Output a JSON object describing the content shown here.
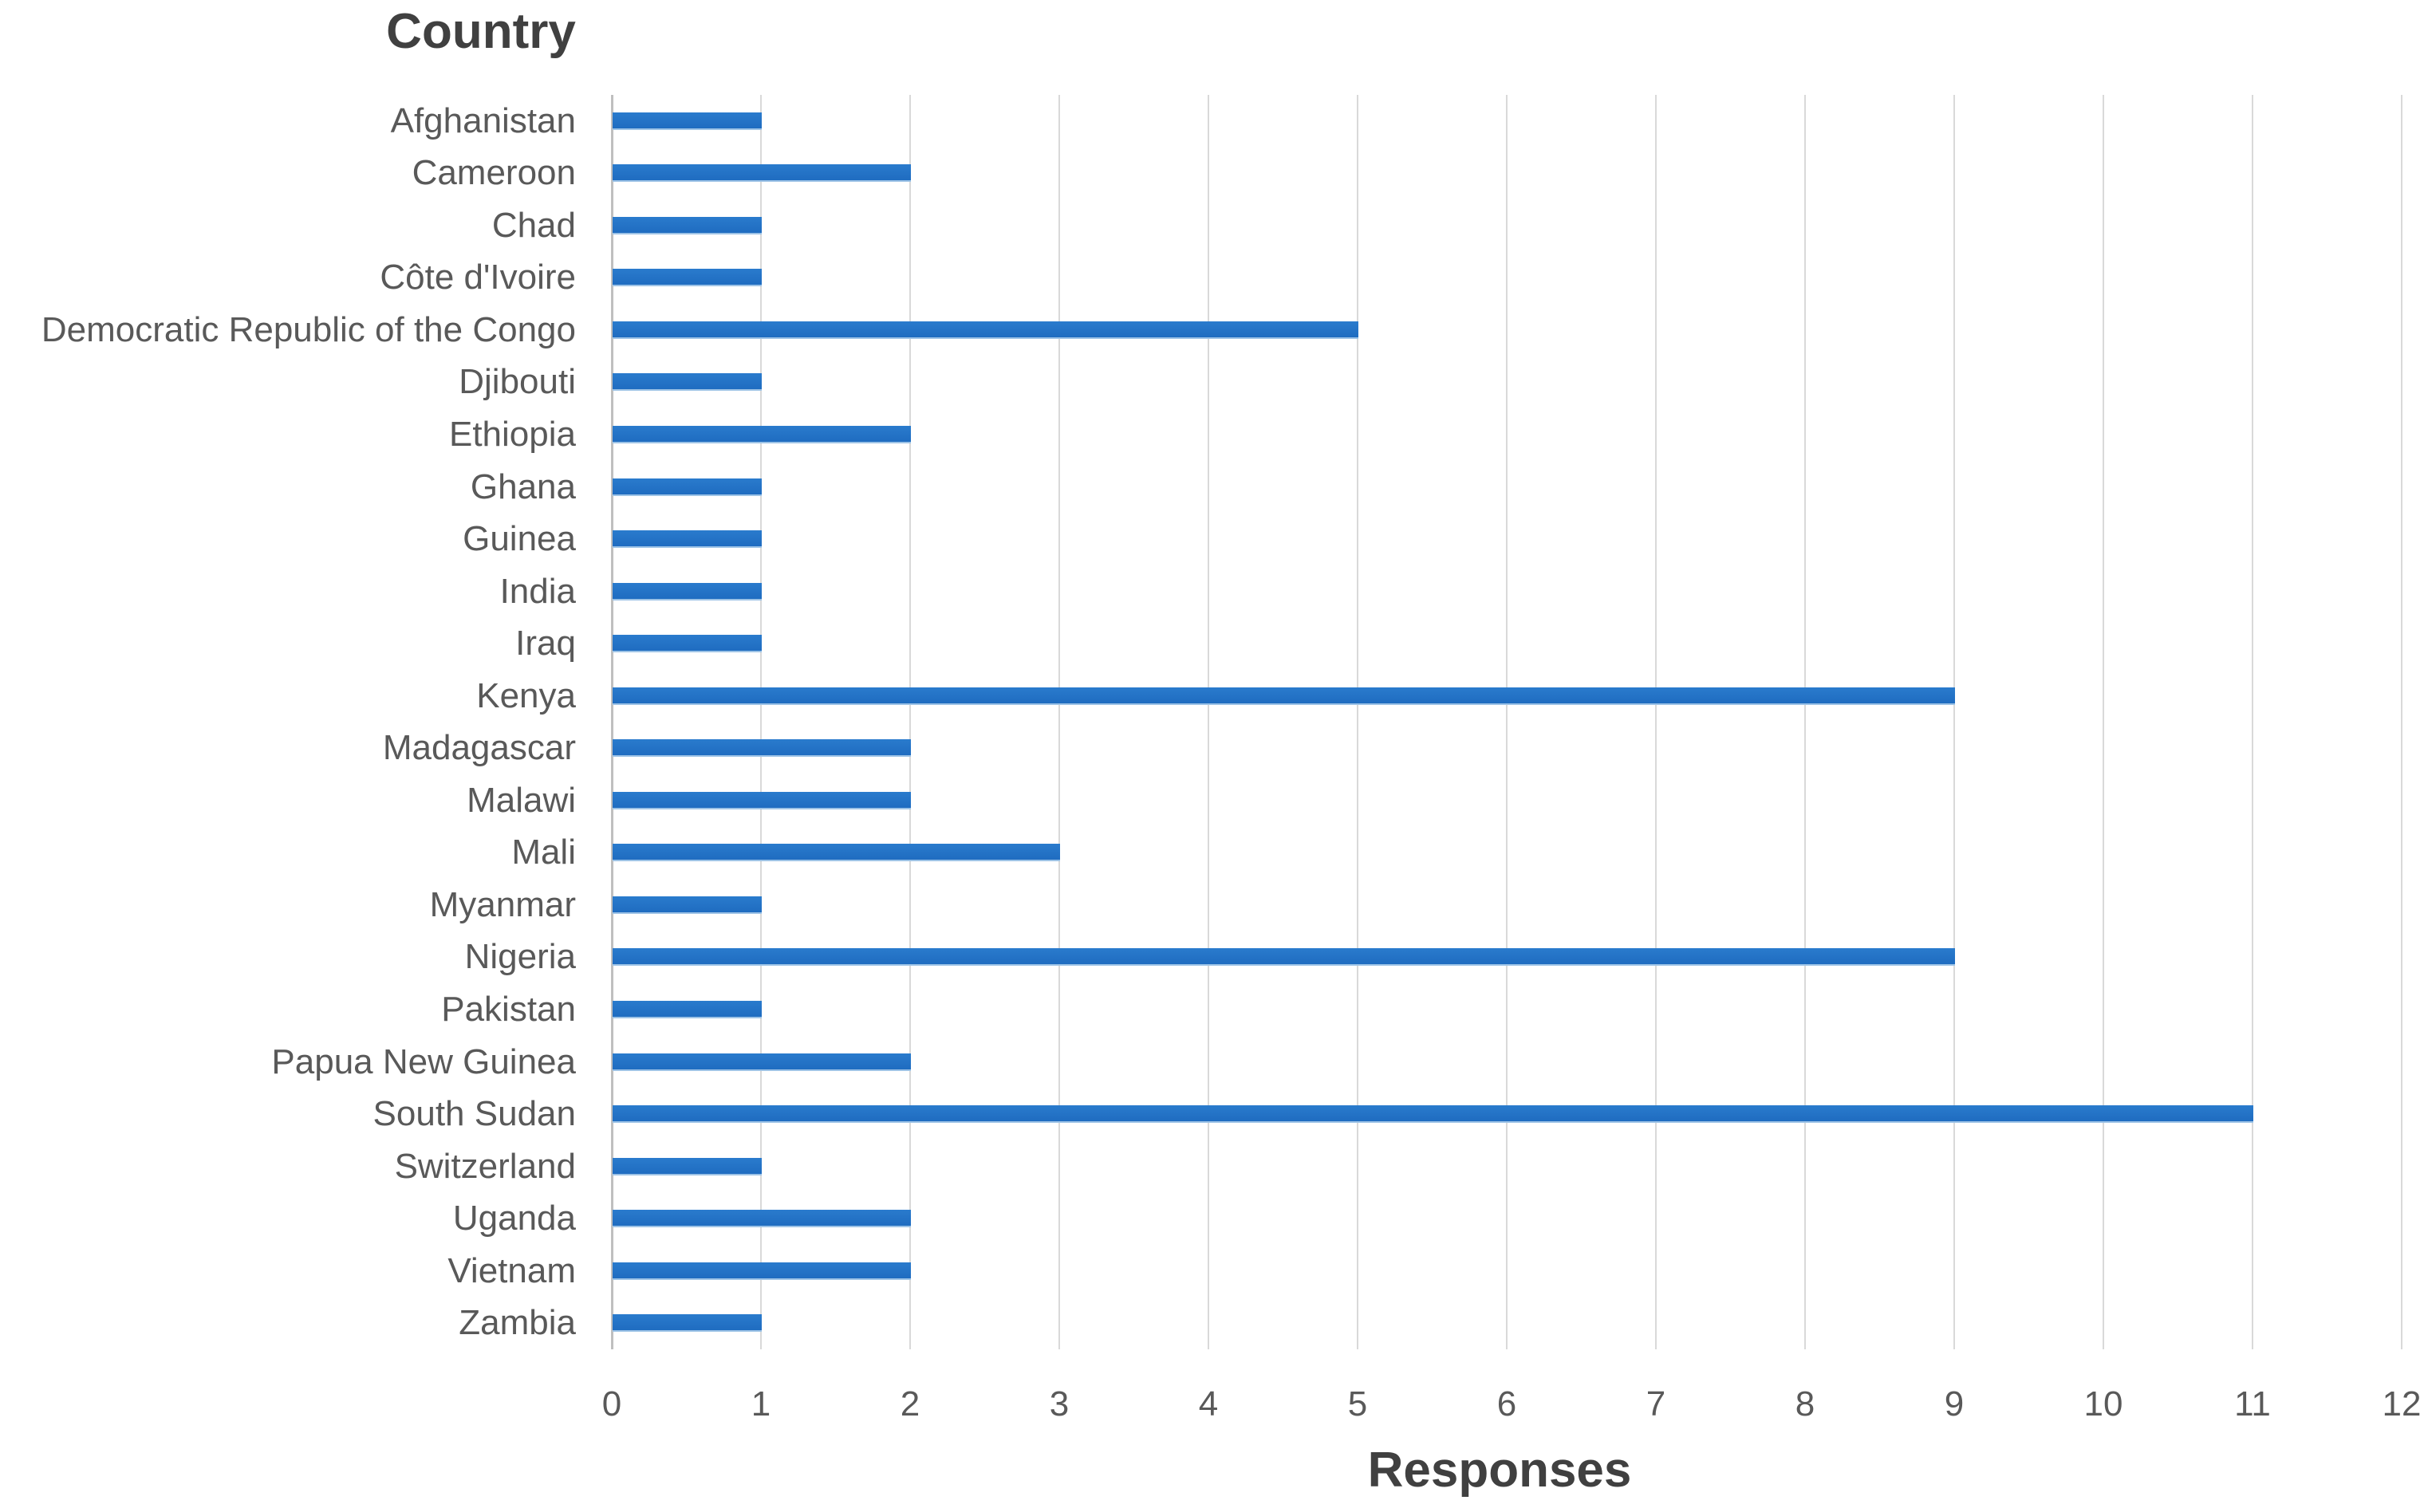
{
  "chart_data": {
    "type": "bar",
    "orientation": "horizontal",
    "title": "Country",
    "xlabel": "Responses",
    "categories": [
      "Afghanistan",
      "Cameroon",
      "Chad",
      "Côte d'Ivoire",
      "Democratic Republic of the Congo",
      "Djibouti",
      "Ethiopia",
      "Ghana",
      "Guinea",
      "India",
      "Iraq",
      "Kenya",
      "Madagascar",
      "Malawi",
      "Mali",
      "Myanmar",
      "Nigeria",
      "Pakistan",
      "Papua New Guinea",
      "South Sudan",
      "Switzerland",
      "Uganda",
      "Vietnam",
      "Zambia"
    ],
    "values": [
      1,
      2,
      1,
      1,
      5,
      1,
      2,
      1,
      1,
      1,
      1,
      9,
      2,
      2,
      3,
      1,
      9,
      1,
      2,
      11,
      1,
      2,
      2,
      1
    ],
    "xlim": [
      0,
      12
    ],
    "xticks": [
      0,
      1,
      2,
      3,
      4,
      5,
      6,
      7,
      8,
      9,
      10,
      11,
      12
    ],
    "grid": "vertical",
    "legend": "none",
    "colors": {
      "bar": "#2272C6",
      "gridline": "#D9D9D9",
      "axis_line": "#BFBFBF",
      "labels": "#595959",
      "axis_titles": "#404040"
    }
  }
}
